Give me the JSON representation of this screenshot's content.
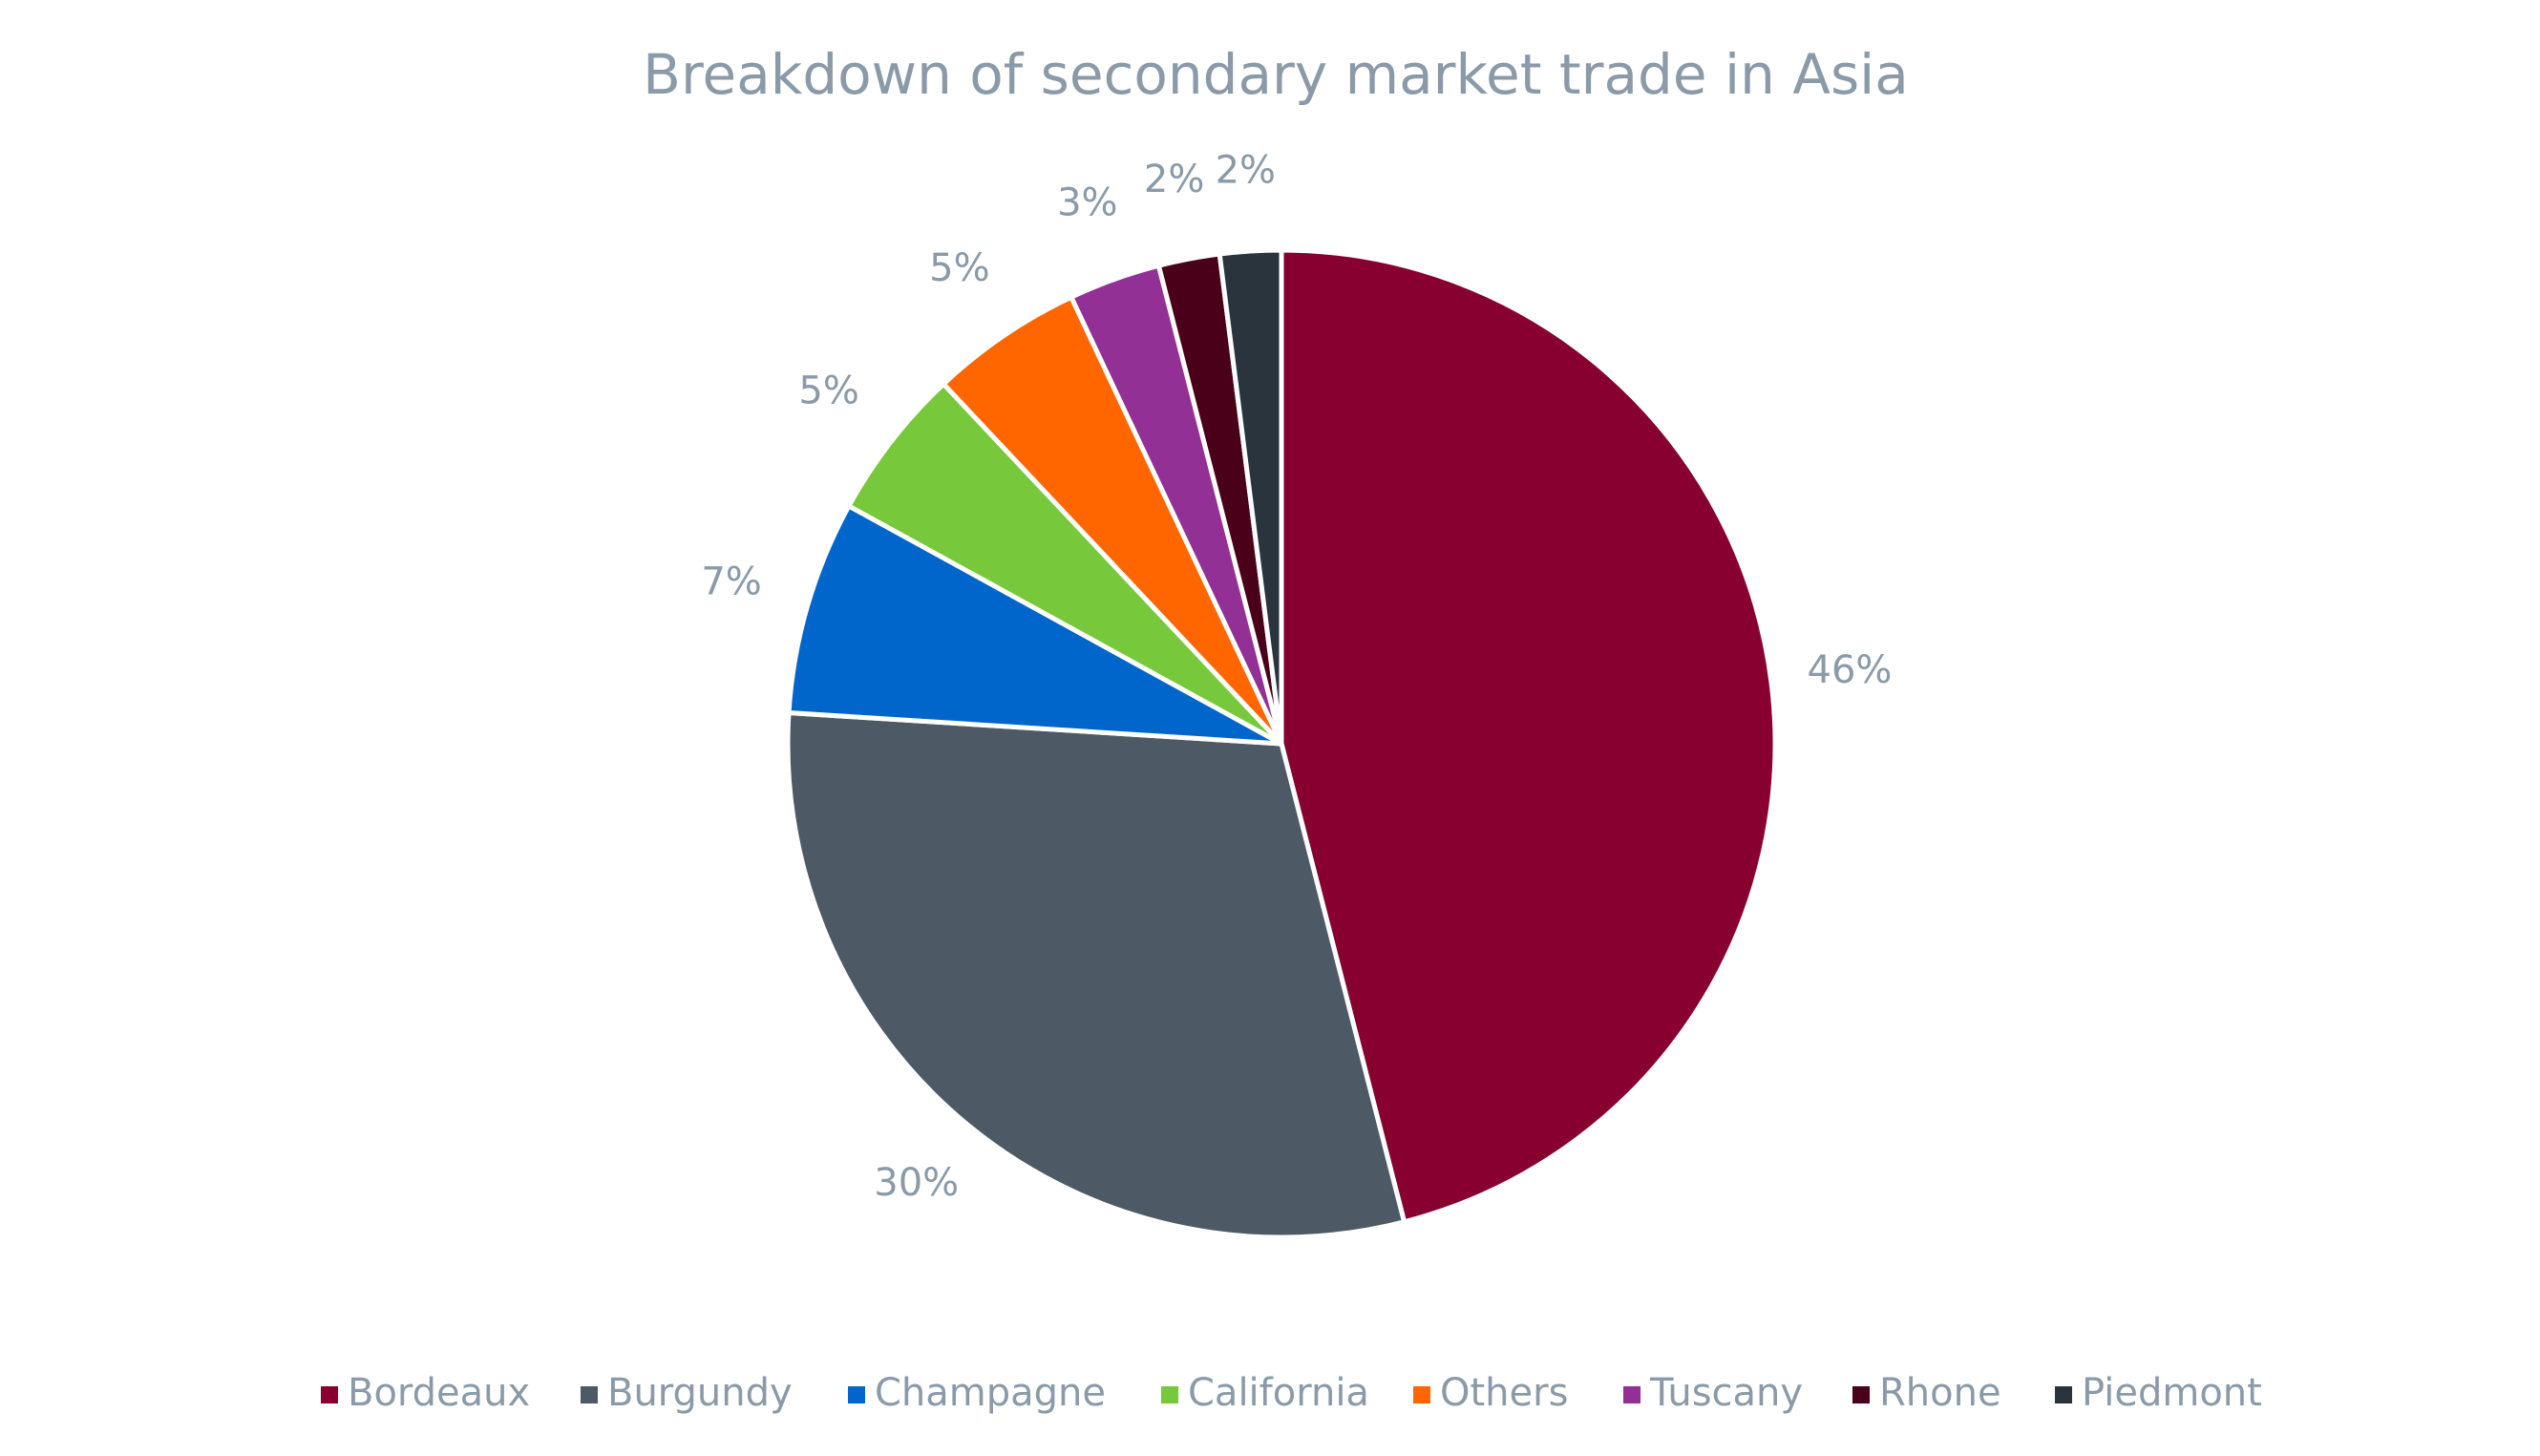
{
  "chart_data": {
    "type": "pie",
    "title": "Breakdown of secondary market trade in Asia",
    "categories": [
      "Bordeaux",
      "Burgundy",
      "Champagne",
      "California",
      "Others",
      "Tuscany",
      "Rhone",
      "Piedmont"
    ],
    "values": [
      46,
      30,
      7,
      5,
      5,
      3,
      2,
      2
    ],
    "value_labels": [
      "46%",
      "30%",
      "7%",
      "5%",
      "5%",
      "3%",
      "2%",
      "2%"
    ],
    "colors": [
      "#870030",
      "#4d5a65",
      "#0066cc",
      "#77c83a",
      "#ff6600",
      "#923095",
      "#4a0019",
      "#29343d"
    ],
    "legend": "bottom"
  }
}
